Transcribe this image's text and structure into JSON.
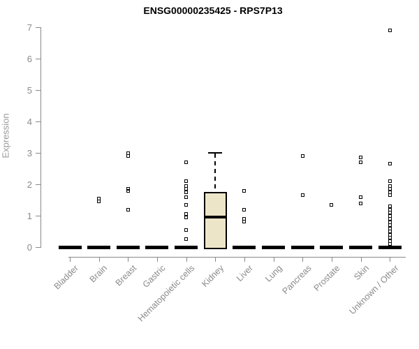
{
  "chart_data": {
    "type": "boxplot",
    "title": "ENSG00000235425 - RPS7P13",
    "ylabel": "Expression",
    "xlabel": "",
    "ylim": [
      0,
      7
    ],
    "yticks": [
      0,
      1,
      2,
      3,
      4,
      5,
      6,
      7
    ],
    "grid": "off",
    "legend": "none",
    "categories": [
      "Bladder",
      "Brain",
      "Breast",
      "Gastric",
      "Hematopoietic cells",
      "Kidney",
      "Liver",
      "Lung",
      "Pancreas",
      "Prostate",
      "Skin",
      "Unknown / Other"
    ],
    "boxes": [
      {
        "category": "Bladder",
        "q1": 0,
        "median": 0,
        "q3": 0,
        "whisker_low": 0,
        "whisker_high": 0,
        "outliers": []
      },
      {
        "category": "Brain",
        "q1": 0,
        "median": 0,
        "q3": 0,
        "whisker_low": 0,
        "whisker_high": 0,
        "outliers": [
          1.55,
          1.45
        ]
      },
      {
        "category": "Breast",
        "q1": 0,
        "median": 0,
        "q3": 0,
        "whisker_low": 0,
        "whisker_high": 0,
        "outliers": [
          3.0,
          2.9,
          1.85,
          1.8,
          1.2
        ]
      },
      {
        "category": "Gastric",
        "q1": 0,
        "median": 0,
        "q3": 0,
        "whisker_low": 0,
        "whisker_high": 0,
        "outliers": []
      },
      {
        "category": "Hematopoietic cells",
        "q1": 0,
        "median": 0,
        "q3": 0,
        "whisker_low": 0,
        "whisker_high": 0,
        "outliers": [
          2.7,
          2.1,
          1.95,
          1.85,
          1.75,
          1.6,
          1.35,
          1.05,
          0.95,
          0.55,
          0.25
        ]
      },
      {
        "category": "Kidney",
        "q1": 0,
        "median": 0.95,
        "q3": 1.75,
        "whisker_low": 0,
        "whisker_high": 3.0,
        "outliers": []
      },
      {
        "category": "Liver",
        "q1": 0,
        "median": 0,
        "q3": 0,
        "whisker_low": 0,
        "whisker_high": 0,
        "outliers": [
          1.8,
          1.2,
          0.9,
          0.82
        ]
      },
      {
        "category": "Lung",
        "q1": 0,
        "median": 0,
        "q3": 0,
        "whisker_low": 0,
        "whisker_high": 0,
        "outliers": []
      },
      {
        "category": "Pancreas",
        "q1": 0,
        "median": 0,
        "q3": 0,
        "whisker_low": 0,
        "whisker_high": 0,
        "outliers": [
          2.9,
          1.65
        ]
      },
      {
        "category": "Prostate",
        "q1": 0,
        "median": 0,
        "q3": 0,
        "whisker_low": 0,
        "whisker_high": 0,
        "outliers": [
          1.35
        ]
      },
      {
        "category": "Skin",
        "q1": 0,
        "median": 0,
        "q3": 0,
        "whisker_low": 0,
        "whisker_high": 0,
        "outliers": [
          2.85,
          2.7,
          1.6,
          1.4
        ]
      },
      {
        "category": "Unknown / Other",
        "q1": 0,
        "median": 0,
        "q3": 0,
        "whisker_low": 0,
        "whisker_high": 0,
        "outliers": [
          6.9,
          2.65,
          2.1,
          1.95,
          1.85,
          1.75,
          1.65,
          1.3,
          1.2,
          1.1,
          1.0,
          0.9,
          0.8,
          0.7,
          0.6,
          0.5,
          0.4,
          0.3,
          0.2,
          0.1
        ]
      }
    ],
    "colors": {
      "box_fill": "#ede5c8",
      "box_border": "#000000",
      "median": "#000000",
      "outlier": "#000000",
      "axis": "#888888",
      "tick_label": "#8a8a8a",
      "title": "#000000"
    }
  }
}
